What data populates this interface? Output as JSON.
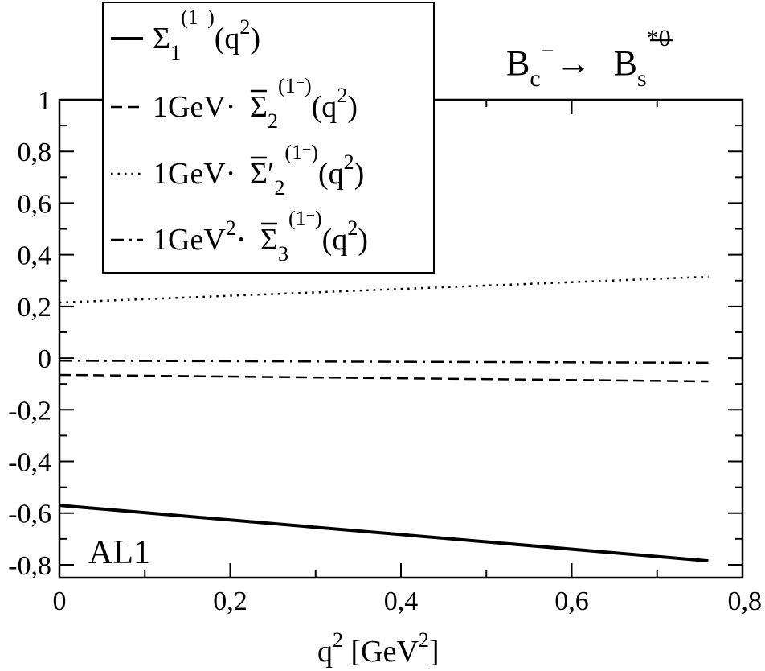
{
  "chart_data": {
    "type": "line",
    "decay": {
      "parent": "B",
      "parent_sub": "c",
      "parent_sup": "−",
      "arrow": "→",
      "daughter": "B",
      "daughter_sub": "s",
      "daughter_sup": "*0"
    },
    "model_label": "AL1",
    "xlabel": {
      "main": "q",
      "sup": "2",
      "unit_open": " [GeV",
      "unit_sup": "2",
      "unit_close": "]"
    },
    "ylabel": "",
    "xlim": [
      0,
      0.8
    ],
    "ylim": [
      -0.85,
      1.0
    ],
    "x_ticks": [
      {
        "value": 0,
        "label": "0"
      },
      {
        "value": 0.2,
        "label": "0,2"
      },
      {
        "value": 0.4,
        "label": "0,4"
      },
      {
        "value": 0.6,
        "label": "0,6"
      },
      {
        "value": 0.8,
        "label": "0,8"
      }
    ],
    "y_ticks": [
      {
        "value": 1.0,
        "label": "1"
      },
      {
        "value": 0.8,
        "label": "0,8"
      },
      {
        "value": 0.6,
        "label": "0,6"
      },
      {
        "value": 0.4,
        "label": "0,4"
      },
      {
        "value": 0.2,
        "label": "0,2"
      },
      {
        "value": 0.0,
        "label": "0"
      },
      {
        "value": -0.2,
        "label": "-0,2"
      },
      {
        "value": -0.4,
        "label": "-0,4"
      },
      {
        "value": -0.6,
        "label": "-0,6"
      },
      {
        "value": -0.8,
        "label": "-0,8"
      }
    ],
    "grid": false,
    "legend_position": "top-left",
    "series": [
      {
        "name": "Σ1(1−)(q2)",
        "style": "solid",
        "legend": {
          "prefix": "",
          "sym": "Σ",
          "bar": false,
          "prime": false,
          "sub": "1",
          "sup": "(1",
          "sup_minus": "−",
          "sup_close": ")",
          "arg": "(q",
          "arg_sup": "2",
          "arg_close": ")"
        },
        "x": [
          0,
          0.76
        ],
        "y": [
          -0.57,
          -0.785
        ]
      },
      {
        "name": "1GeV· Σ̄2(1−)(q2)",
        "style": "dashed",
        "legend": {
          "prefix": "1GeV·",
          "prefix_sup": "",
          "sym": "Σ",
          "bar": true,
          "prime": false,
          "sub": "2",
          "sup": "(1",
          "sup_minus": "−",
          "sup_close": ")",
          "arg": "(q",
          "arg_sup": "2",
          "arg_close": ")"
        },
        "x": [
          0,
          0.76
        ],
        "y": [
          -0.065,
          -0.09
        ]
      },
      {
        "name": "1GeV· Σ̄′2(1−)(q2)",
        "style": "dotted",
        "legend": {
          "prefix": "1GeV·",
          "prefix_sup": "",
          "sym": "Σ",
          "bar": true,
          "prime": true,
          "sub": "2",
          "sup": "(1",
          "sup_minus": "−",
          "sup_close": ")",
          "arg": "(q",
          "arg_sup": "2",
          "arg_close": ")"
        },
        "x": [
          0,
          0.76
        ],
        "y": [
          0.215,
          0.315
        ]
      },
      {
        "name": "1GeV2· Σ̄3(1−)(q2)",
        "style": "dashdot",
        "legend": {
          "prefix": "1GeV",
          "prefix_sup": "2",
          "prefix_tail": "·",
          "sym": "Σ",
          "bar": true,
          "prime": false,
          "sub": "3",
          "sup": "(1",
          "sup_minus": "−",
          "sup_close": ")",
          "arg": "(q",
          "arg_sup": "2",
          "arg_close": ")"
        },
        "x": [
          0,
          0.76
        ],
        "y": [
          -0.01,
          -0.018
        ]
      }
    ]
  }
}
